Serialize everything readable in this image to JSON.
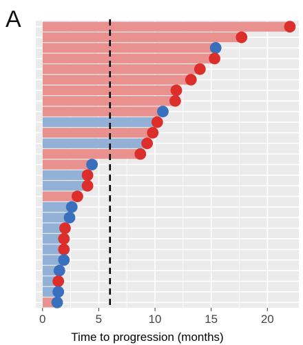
{
  "panel_label": "A",
  "colors": {
    "red_bar": "#e8918e",
    "blue_bar": "#93b1d6",
    "red_dot": "#dc2e2a",
    "blue_dot": "#3a6fbe",
    "panel_bg": "#ebebeb",
    "grid": "#ffffff"
  },
  "chart_data": {
    "type": "bar",
    "orientation": "horizontal",
    "title": "",
    "xlabel": "Time to progression (months)",
    "ylabel": "",
    "xlim": [
      -0.6,
      22.8
    ],
    "xticks": [
      0,
      5,
      10,
      15,
      20
    ],
    "x_tick_labels": [
      "0",
      "5",
      "10",
      "15",
      "20"
    ],
    "reference_line": {
      "x": 6,
      "style": "dashed",
      "color": "#000000"
    },
    "grid": true,
    "legend": "none",
    "series": [
      {
        "color_group": "red",
        "value": 22.0
      },
      {
        "color_group": "red",
        "value": 17.7
      },
      {
        "color_group": "red",
        "value": 15.4,
        "dot_group": "blue"
      },
      {
        "color_group": "red",
        "value": 15.3
      },
      {
        "color_group": "red",
        "value": 14.0
      },
      {
        "color_group": "red",
        "value": 13.2
      },
      {
        "color_group": "red",
        "value": 11.9
      },
      {
        "color_group": "red",
        "value": 11.8
      },
      {
        "color_group": "red",
        "value": 10.7,
        "dot_group": "blue"
      },
      {
        "color_group": "blue",
        "value": 10.2,
        "dot_group": "red"
      },
      {
        "color_group": "red",
        "value": 9.8
      },
      {
        "color_group": "blue",
        "value": 9.3,
        "dot_group": "red"
      },
      {
        "color_group": "red",
        "value": 8.7
      },
      {
        "color_group": "red",
        "value": 4.4,
        "dot_group": "blue"
      },
      {
        "color_group": "blue",
        "value": 4.0,
        "dot_group": "red"
      },
      {
        "color_group": "blue",
        "value": 4.0,
        "dot_group": "red"
      },
      {
        "color_group": "red",
        "value": 3.1
      },
      {
        "color_group": "blue",
        "value": 2.6
      },
      {
        "color_group": "blue",
        "value": 2.4
      },
      {
        "color_group": "blue",
        "value": 2.0,
        "dot_group": "red"
      },
      {
        "color_group": "blue",
        "value": 1.9,
        "dot_group": "red"
      },
      {
        "color_group": "blue",
        "value": 1.9,
        "dot_group": "red"
      },
      {
        "color_group": "blue",
        "value": 1.9
      },
      {
        "color_group": "blue",
        "value": 1.5
      },
      {
        "color_group": "blue",
        "value": 1.4,
        "dot_group": "red"
      },
      {
        "color_group": "blue",
        "value": 1.4
      },
      {
        "color_group": "red",
        "value": 1.3,
        "dot_group": "blue"
      }
    ]
  }
}
